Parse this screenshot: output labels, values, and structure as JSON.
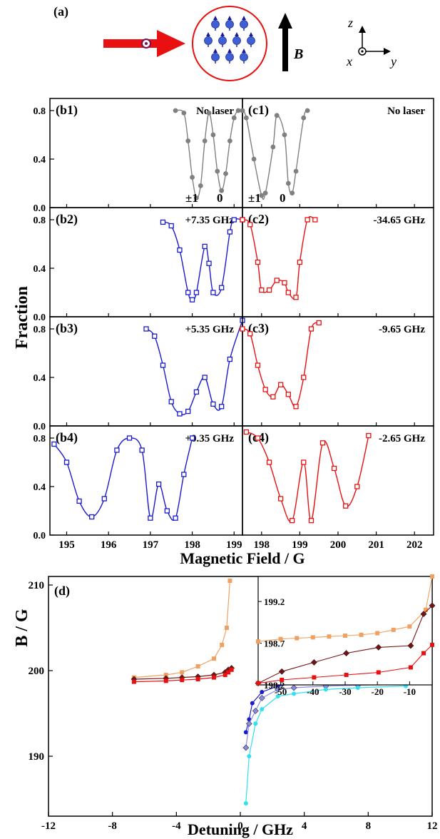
{
  "panel_a": {
    "label": "(a)",
    "field_symbol": "B",
    "axes": {
      "z": "z",
      "y": "y",
      "x": "x"
    },
    "colors": {
      "laser": "#e81010",
      "atoms": "#3f5fd6",
      "cloud_border": "#e81010"
    }
  },
  "grid": {
    "ylabel": "Fraction",
    "xlabel": "Magnetic Field / G",
    "y_ticks": [
      "0.0",
      "0.4",
      "0.8"
    ],
    "left_x_ticks": [
      "195",
      "196",
      "197",
      "198",
      "199"
    ],
    "right_x_ticks": [
      "198",
      "199",
      "200",
      "201",
      "202"
    ]
  },
  "panels": [
    {
      "id": "b1",
      "label": "(b1)",
      "note": "No laser",
      "color": "#808080",
      "peaks": [
        "±1",
        "0"
      ]
    },
    {
      "id": "c1",
      "label": "(c1)",
      "note": "No laser",
      "color": "#808080",
      "peaks": [
        "±1",
        "0"
      ]
    },
    {
      "id": "b2",
      "label": "(b2)",
      "note": "+7.35 GHz",
      "color": "#1a1ad0"
    },
    {
      "id": "c2",
      "label": "(c2)",
      "note": "-34.65 GHz",
      "color": "#e81010"
    },
    {
      "id": "b3",
      "label": "(b3)",
      "note": "+5.35 GHz",
      "color": "#1a1ad0"
    },
    {
      "id": "c3",
      "label": "(c3)",
      "note": "-9.65 GHz",
      "color": "#e81010"
    },
    {
      "id": "b4",
      "label": "(b4)",
      "note": "+0.35 GHz",
      "color": "#1a1ad0"
    },
    {
      "id": "c4",
      "label": "(c4)",
      "note": "-2.65 GHz",
      "color": "#e81010"
    }
  ],
  "panel_d": {
    "label": "(d)",
    "xlabel": "Detuning / GHz",
    "ylabel": "B / G",
    "x_ticks": [
      "-12",
      "-8",
      "-4",
      "0",
      "4",
      "8",
      "12"
    ],
    "y_ticks": [
      "190",
      "200",
      "210"
    ],
    "inset_x_ticks": [
      "-50",
      "-40",
      "-30",
      "-20",
      "-10"
    ],
    "inset_y_ticks": [
      "198.2",
      "198.7",
      "199.2"
    ]
  },
  "chart_data": [
    {
      "type": "line",
      "panel": "b1",
      "xlim": [
        194.6,
        199.2
      ],
      "ylim": [
        0,
        0.9
      ],
      "series": [
        {
          "x": [
            197.6,
            197.8,
            197.9,
            198.0,
            198.1,
            198.2,
            198.3,
            198.4,
            198.5,
            198.6,
            198.7,
            198.8,
            198.9,
            199.0,
            199.1,
            199.2
          ],
          "y": [
            0.8,
            0.78,
            0.55,
            0.25,
            0.08,
            0.18,
            0.55,
            0.78,
            0.6,
            0.3,
            0.14,
            0.28,
            0.55,
            0.74,
            0.8,
            0.8
          ]
        }
      ]
    },
    {
      "type": "line",
      "panel": "c1",
      "xlim": [
        197.5,
        202.5
      ],
      "ylim": [
        0,
        0.9
      ],
      "series": [
        {
          "x": [
            197.5,
            197.6,
            197.8,
            198.0,
            198.1,
            198.3,
            198.4,
            198.6,
            198.7,
            198.8,
            198.9,
            199.1,
            199.2
          ],
          "y": [
            0.8,
            0.74,
            0.4,
            0.1,
            0.12,
            0.5,
            0.76,
            0.6,
            0.2,
            0.12,
            0.3,
            0.74,
            0.8
          ]
        }
      ]
    },
    {
      "type": "line",
      "panel": "b2",
      "xlim": [
        194.6,
        199.2
      ],
      "ylim": [
        0,
        0.9
      ],
      "series": [
        {
          "x": [
            197.3,
            197.5,
            197.7,
            197.9,
            198.0,
            198.1,
            198.3,
            198.4,
            198.5,
            198.7,
            198.9,
            199.0,
            199.2
          ],
          "y": [
            0.78,
            0.75,
            0.55,
            0.2,
            0.14,
            0.2,
            0.58,
            0.44,
            0.2,
            0.24,
            0.7,
            0.8,
            0.8
          ]
        }
      ]
    },
    {
      "type": "line",
      "panel": "c2",
      "xlim": [
        197.5,
        202.5
      ],
      "ylim": [
        0,
        0.9
      ],
      "series": [
        {
          "x": [
            197.5,
            197.7,
            197.9,
            198.0,
            198.2,
            198.4,
            198.6,
            198.7,
            198.9,
            199.0,
            199.2,
            199.4
          ],
          "y": [
            0.8,
            0.76,
            0.45,
            0.22,
            0.22,
            0.3,
            0.28,
            0.2,
            0.16,
            0.45,
            0.8,
            0.8
          ]
        }
      ]
    },
    {
      "type": "line",
      "panel": "b3",
      "xlim": [
        194.6,
        199.2
      ],
      "ylim": [
        0,
        0.9
      ],
      "series": [
        {
          "x": [
            196.9,
            197.1,
            197.3,
            197.5,
            197.7,
            197.9,
            198.1,
            198.3,
            198.5,
            198.7,
            198.9,
            199.2
          ],
          "y": [
            0.8,
            0.74,
            0.5,
            0.2,
            0.1,
            0.12,
            0.28,
            0.4,
            0.18,
            0.16,
            0.55,
            0.87
          ]
        }
      ]
    },
    {
      "type": "line",
      "panel": "c3",
      "xlim": [
        197.5,
        202.5
      ],
      "ylim": [
        0,
        0.9
      ],
      "series": [
        {
          "x": [
            197.5,
            197.7,
            197.9,
            198.1,
            198.3,
            198.5,
            198.7,
            198.9,
            199.1,
            199.3,
            199.5
          ],
          "y": [
            0.8,
            0.76,
            0.5,
            0.3,
            0.24,
            0.34,
            0.26,
            0.16,
            0.4,
            0.8,
            0.85
          ]
        }
      ]
    },
    {
      "type": "line",
      "panel": "b4",
      "xlim": [
        194.6,
        199.2
      ],
      "ylim": [
        0,
        0.9
      ],
      "series": [
        {
          "x": [
            194.7,
            195.0,
            195.3,
            195.6,
            195.9,
            196.2,
            196.5,
            196.8,
            197.0,
            197.2,
            197.4,
            197.6,
            197.8,
            198.0
          ],
          "y": [
            0.75,
            0.6,
            0.28,
            0.15,
            0.3,
            0.7,
            0.8,
            0.7,
            0.14,
            0.42,
            0.2,
            0.14,
            0.5,
            0.8
          ]
        }
      ]
    },
    {
      "type": "line",
      "panel": "c4",
      "xlim": [
        197.5,
        202.5
      ],
      "ylim": [
        0,
        0.9
      ],
      "series": [
        {
          "x": [
            197.6,
            197.9,
            198.2,
            198.5,
            198.8,
            199.1,
            199.3,
            199.6,
            199.9,
            200.2,
            200.5,
            200.8
          ],
          "y": [
            0.85,
            0.8,
            0.6,
            0.3,
            0.12,
            0.6,
            0.12,
            0.76,
            0.55,
            0.24,
            0.4,
            0.82
          ]
        }
      ]
    },
    {
      "type": "line",
      "panel": "d",
      "xlim": [
        -12,
        12
      ],
      "ylim": [
        183,
        211
      ],
      "series": [
        {
          "color": "#f0a060",
          "x": [
            -6.65,
            -4.65,
            -3.65,
            -2.65,
            -1.65,
            -1.15,
            -0.85,
            -0.65
          ],
          "y": [
            199.2,
            199.5,
            199.8,
            200.5,
            201.4,
            203.0,
            205.0,
            210.5
          ]
        },
        {
          "color": "#7a1010",
          "x": [
            -6.65,
            -4.65,
            -3.65,
            -2.65,
            -1.65,
            -0.95,
            -0.75,
            -0.55
          ],
          "y": [
            199.0,
            199.1,
            199.2,
            199.3,
            199.5,
            199.8,
            200.1,
            200.3
          ]
        },
        {
          "color": "#e81010",
          "x": [
            -6.65,
            -4.65,
            -3.65,
            -2.65,
            -1.65,
            -0.95,
            -0.75,
            -0.55
          ],
          "y": [
            198.7,
            198.8,
            198.9,
            199.0,
            199.2,
            199.5,
            199.8,
            200.1
          ]
        },
        {
          "color": "#1a1ad0",
          "x": [
            0.35,
            0.55,
            0.75,
            1.35,
            2.35,
            3.35,
            5.35,
            7.35,
            10.35
          ],
          "y": [
            192.8,
            194.3,
            196.2,
            197.5,
            198.2,
            198.5,
            198.7,
            198.8,
            198.9
          ]
        },
        {
          "color": "#8a8ae0",
          "x": [
            0.35,
            0.55,
            0.95,
            1.35,
            2.35,
            3.35,
            5.35,
            7.35,
            10.35
          ],
          "y": [
            191.0,
            193.8,
            195.3,
            196.8,
            197.8,
            198.0,
            198.2,
            198.3,
            198.4
          ]
        },
        {
          "color": "#30e0f0",
          "x": [
            0.35,
            0.55,
            0.95,
            1.35,
            2.35,
            3.35,
            5.35,
            7.35,
            10.35
          ],
          "y": [
            184.5,
            190.0,
            193.8,
            195.5,
            197.0,
            197.3,
            197.8,
            198.0,
            198.2
          ]
        }
      ]
    },
    {
      "type": "line",
      "panel": "d-inset",
      "xlim": [
        -57,
        -3
      ],
      "ylim": [
        198.2,
        199.5
      ],
      "series": [
        {
          "color": "#f0a060",
          "x": [
            -57,
            -50,
            -45,
            -40,
            -35,
            -30,
            -25,
            -20,
            -15,
            -10,
            -5,
            -3
          ],
          "y": [
            198.72,
            198.75,
            198.76,
            198.77,
            198.78,
            198.79,
            198.8,
            198.82,
            198.86,
            198.9,
            199.1,
            199.5
          ]
        },
        {
          "color": "#7a1010",
          "x": [
            -57,
            -49.65,
            -39.65,
            -29.65,
            -19.65,
            -9.65,
            -5.65,
            -3
          ],
          "y": [
            198.22,
            198.36,
            198.47,
            198.58,
            198.65,
            198.67,
            199.05,
            199.15
          ]
        },
        {
          "color": "#e81010",
          "x": [
            -57,
            -49.65,
            -39.65,
            -29.65,
            -19.65,
            -9.65,
            -5.65,
            -3
          ],
          "y": [
            198.22,
            198.26,
            198.29,
            198.32,
            198.35,
            198.41,
            198.58,
            198.68
          ]
        }
      ]
    }
  ]
}
